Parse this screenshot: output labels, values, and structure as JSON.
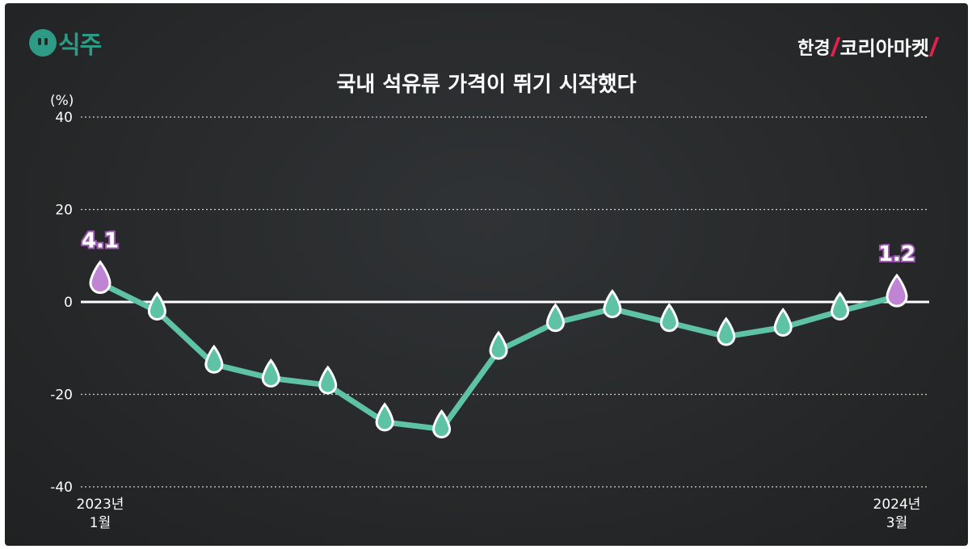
{
  "header": {
    "logo_left": "식주",
    "logo_right_a": "한경",
    "logo_right_b": "코리아마켓"
  },
  "colors": {
    "line": "#5ec2a4",
    "marker": "#5ec2a4",
    "endpoint_marker": "#c084d4",
    "zero_line": "#ffffff",
    "grid": "#cfcfcf"
  },
  "chart_data": {
    "type": "line",
    "title": "국내 석유류 가격이 뛰기 시작했다",
    "ylabel": "(%)",
    "ylim": [
      -40,
      40
    ],
    "yticks": [
      40,
      20,
      0,
      -20,
      -40
    ],
    "grid": "horizontal dotted",
    "x_start_label": [
      "2023년",
      "1월"
    ],
    "x_end_label": [
      "2024년",
      "3월"
    ],
    "categories": [
      "2023-01",
      "2023-02",
      "2023-03",
      "2023-04",
      "2023-05",
      "2023-06",
      "2023-07",
      "2023-08",
      "2023-09",
      "2023-10",
      "2023-11",
      "2023-12",
      "2024-01",
      "2024-02",
      "2024-03"
    ],
    "values": [
      4.1,
      -2.0,
      -13.5,
      -16.5,
      -18.0,
      -26.0,
      -27.5,
      -10.5,
      -4.5,
      -1.5,
      -4.5,
      -7.5,
      -5.5,
      -2.0,
      1.2
    ],
    "labeled_points": [
      {
        "index": 0,
        "label": "4.1"
      },
      {
        "index": 14,
        "label": "1.2"
      }
    ]
  }
}
